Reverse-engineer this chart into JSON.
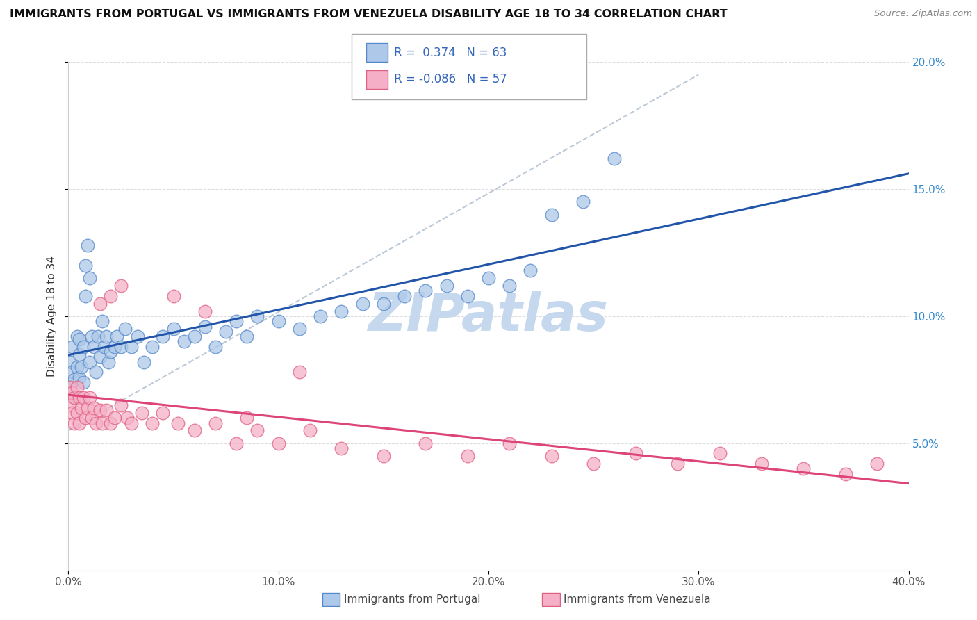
{
  "title": "IMMIGRANTS FROM PORTUGAL VS IMMIGRANTS FROM VENEZUELA DISABILITY AGE 18 TO 34 CORRELATION CHART",
  "source": "Source: ZipAtlas.com",
  "ylabel": "Disability Age 18 to 34",
  "x_min": 0.0,
  "x_max": 0.4,
  "y_min": 0.0,
  "y_max": 0.2,
  "series1_label": "Immigrants from Portugal",
  "series2_label": "Immigrants from Venezuela",
  "series1_color": "#adc8e8",
  "series2_color": "#f5b0c8",
  "series1_edge_color": "#5588cc",
  "series2_edge_color": "#e06080",
  "series1_R": 0.374,
  "series1_N": 63,
  "series2_R": -0.086,
  "series2_N": 57,
  "legend_R_color": "#3366bb",
  "watermark": "ZIPatlas",
  "watermark_color": "#c5d8ee",
  "trend_line1_color": "#2255aa",
  "trend_line2_color": "#dd4477",
  "dash_line_color": "#aabbcc",
  "portugal_x": [
    0.001,
    0.001,
    0.002,
    0.002,
    0.003,
    0.003,
    0.004,
    0.004,
    0.005,
    0.005,
    0.005,
    0.006,
    0.007,
    0.007,
    0.008,
    0.008,
    0.009,
    0.01,
    0.01,
    0.011,
    0.012,
    0.013,
    0.014,
    0.015,
    0.016,
    0.017,
    0.018,
    0.019,
    0.02,
    0.022,
    0.023,
    0.025,
    0.027,
    0.03,
    0.033,
    0.036,
    0.04,
    0.045,
    0.05,
    0.055,
    0.06,
    0.065,
    0.07,
    0.075,
    0.08,
    0.085,
    0.09,
    0.1,
    0.11,
    0.12,
    0.13,
    0.14,
    0.15,
    0.16,
    0.17,
    0.18,
    0.19,
    0.2,
    0.21,
    0.22,
    0.23,
    0.245,
    0.26
  ],
  "portugal_y": [
    0.072,
    0.082,
    0.088,
    0.078,
    0.075,
    0.068,
    0.092,
    0.08,
    0.091,
    0.085,
    0.076,
    0.08,
    0.074,
    0.088,
    0.12,
    0.108,
    0.128,
    0.115,
    0.082,
    0.092,
    0.088,
    0.078,
    0.092,
    0.084,
    0.098,
    0.088,
    0.092,
    0.082,
    0.086,
    0.088,
    0.092,
    0.088,
    0.095,
    0.088,
    0.092,
    0.082,
    0.088,
    0.092,
    0.095,
    0.09,
    0.092,
    0.096,
    0.088,
    0.094,
    0.098,
    0.092,
    0.1,
    0.098,
    0.095,
    0.1,
    0.102,
    0.105,
    0.105,
    0.108,
    0.11,
    0.112,
    0.108,
    0.115,
    0.112,
    0.118,
    0.14,
    0.145,
    0.162
  ],
  "venezuela_x": [
    0.001,
    0.001,
    0.002,
    0.002,
    0.003,
    0.003,
    0.004,
    0.004,
    0.005,
    0.005,
    0.006,
    0.007,
    0.008,
    0.009,
    0.01,
    0.011,
    0.012,
    0.013,
    0.015,
    0.016,
    0.018,
    0.02,
    0.022,
    0.025,
    0.028,
    0.03,
    0.035,
    0.04,
    0.045,
    0.052,
    0.06,
    0.07,
    0.08,
    0.09,
    0.1,
    0.115,
    0.13,
    0.15,
    0.17,
    0.19,
    0.21,
    0.23,
    0.25,
    0.27,
    0.29,
    0.31,
    0.33,
    0.35,
    0.37,
    0.385,
    0.015,
    0.02,
    0.025,
    0.11,
    0.05,
    0.065,
    0.085
  ],
  "venezuela_y": [
    0.072,
    0.065,
    0.07,
    0.062,
    0.068,
    0.058,
    0.072,
    0.062,
    0.068,
    0.058,
    0.064,
    0.068,
    0.06,
    0.064,
    0.068,
    0.06,
    0.064,
    0.058,
    0.063,
    0.058,
    0.063,
    0.058,
    0.06,
    0.065,
    0.06,
    0.058,
    0.062,
    0.058,
    0.062,
    0.058,
    0.055,
    0.058,
    0.05,
    0.055,
    0.05,
    0.055,
    0.048,
    0.045,
    0.05,
    0.045,
    0.05,
    0.045,
    0.042,
    0.046,
    0.042,
    0.046,
    0.042,
    0.04,
    0.038,
    0.042,
    0.105,
    0.108,
    0.112,
    0.078,
    0.108,
    0.102,
    0.06
  ]
}
